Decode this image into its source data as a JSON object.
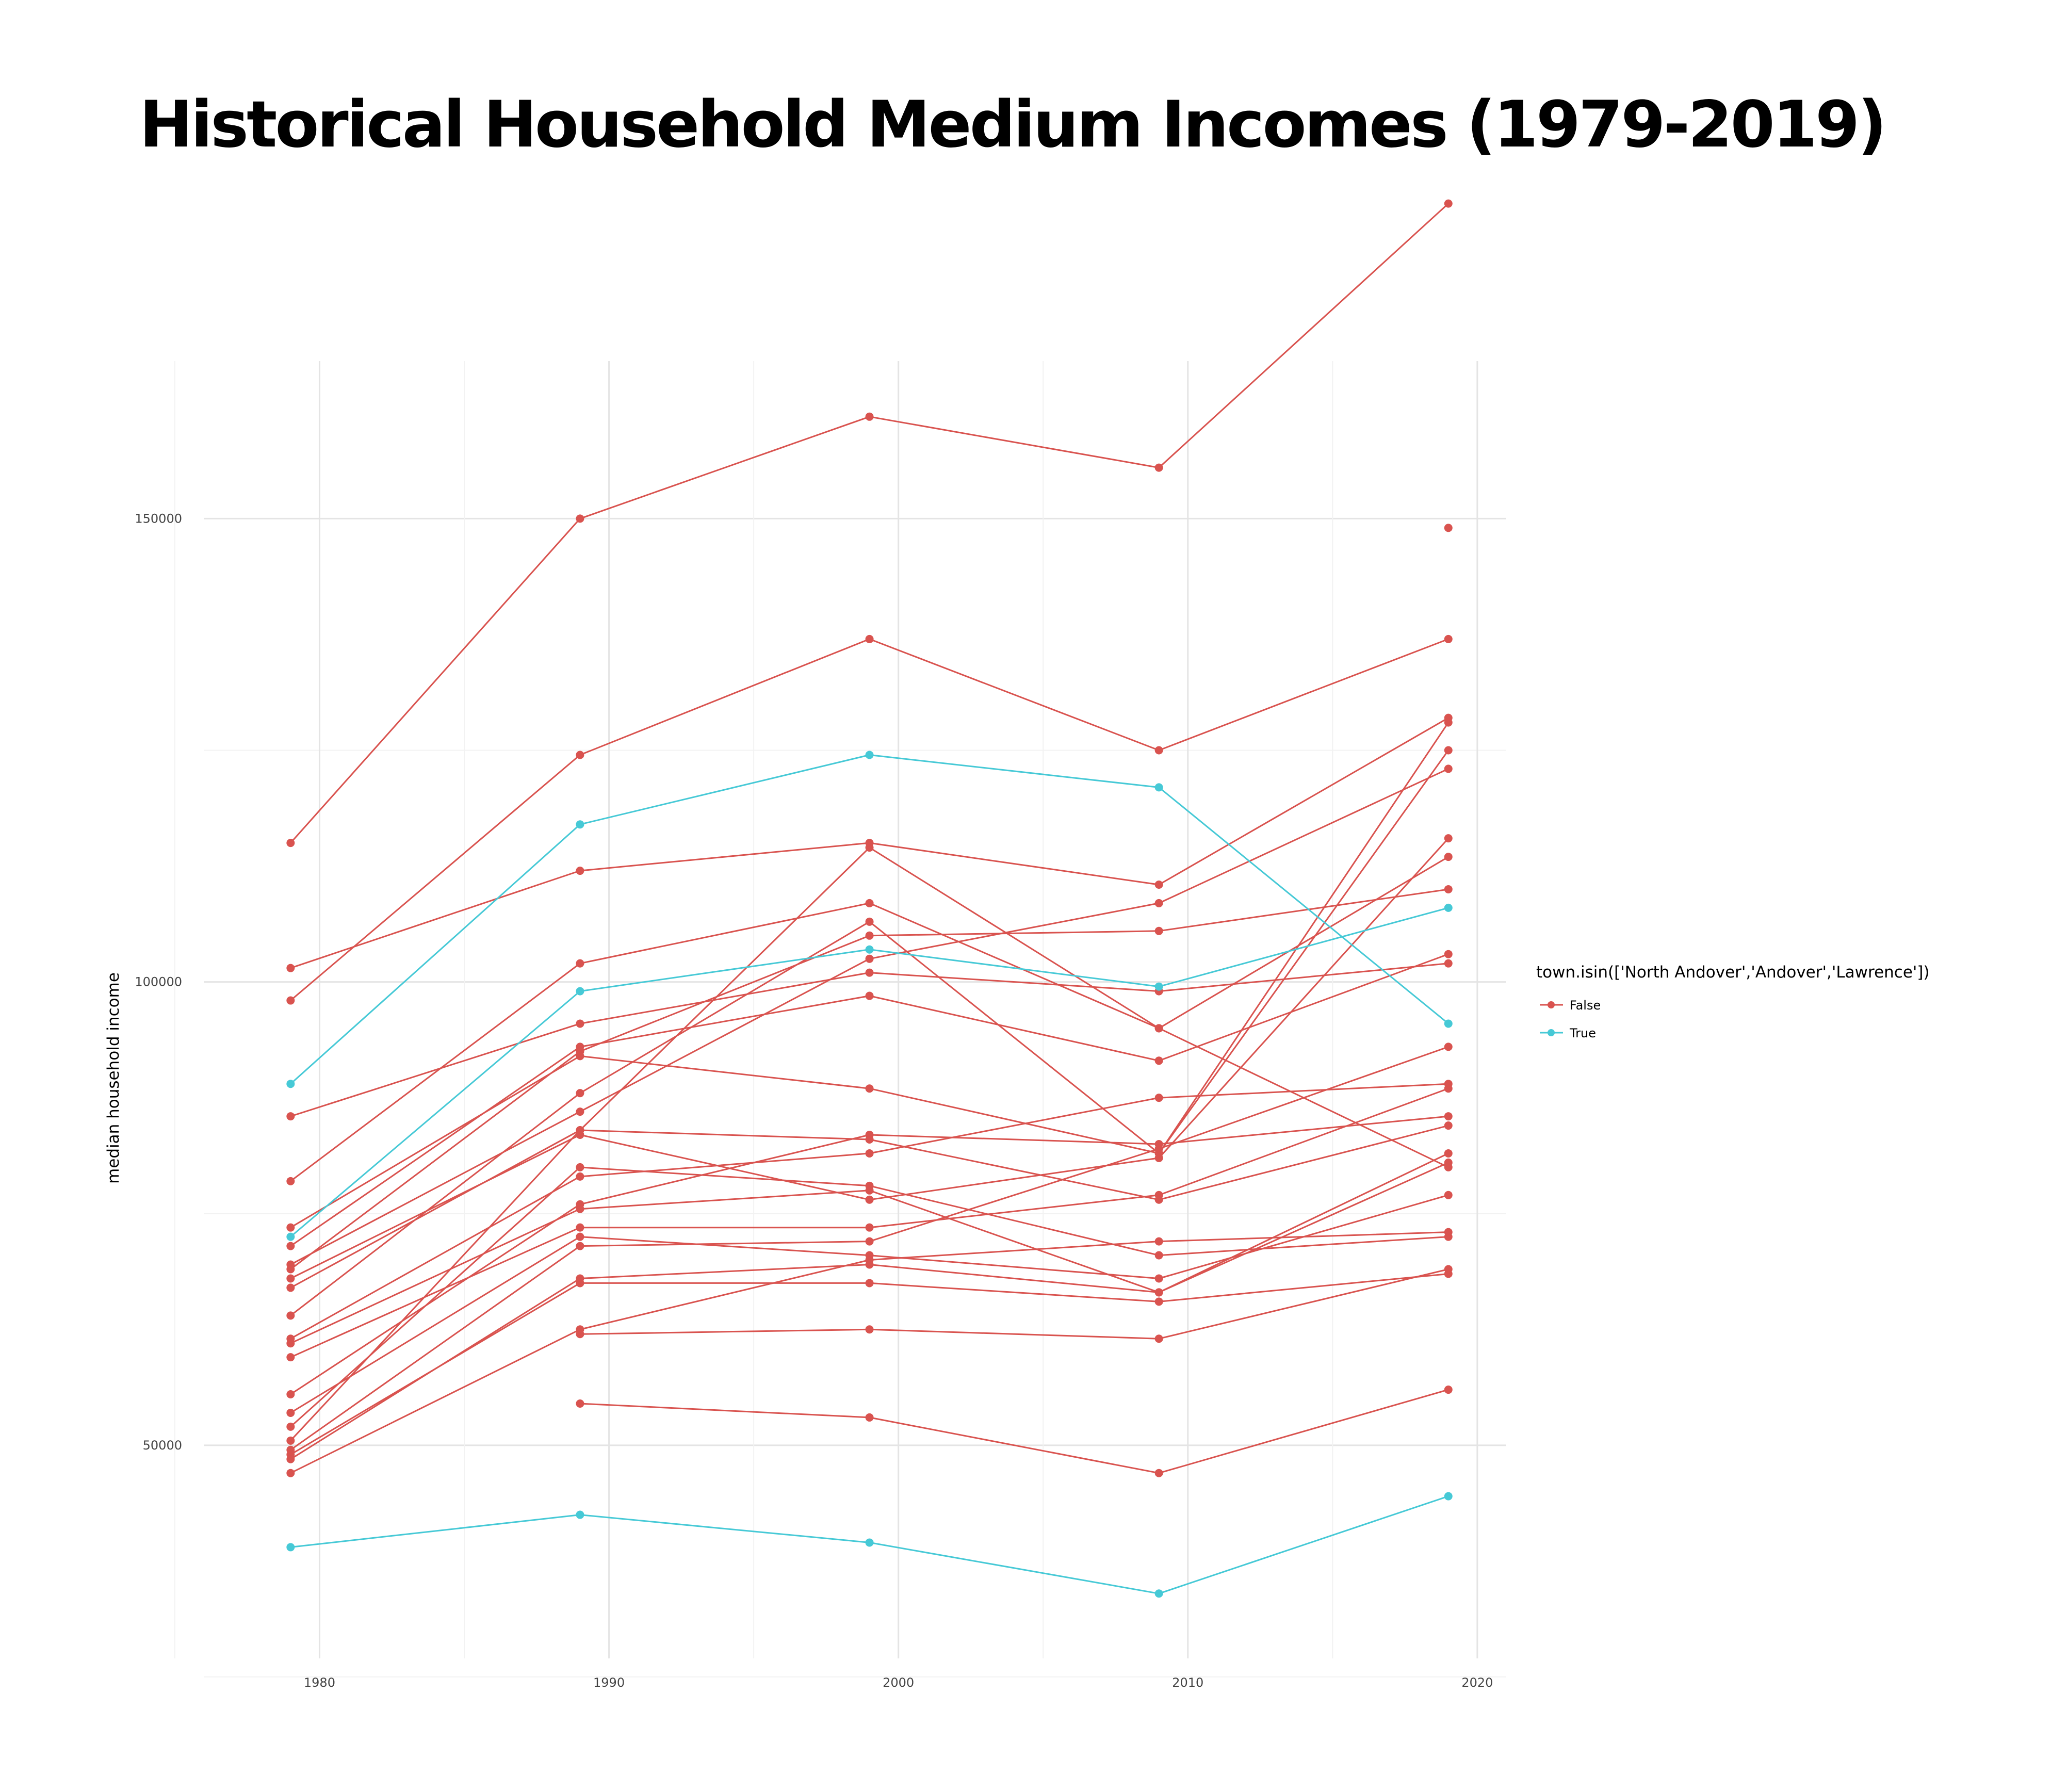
{
  "chart_data": {
    "type": "line",
    "title": "Historical Household Medium Incomes (1979-2019)",
    "xlabel": "",
    "ylabel": "median household income",
    "x": [
      1979,
      1989,
      1999,
      2009,
      2019
    ],
    "xticks": [
      1980,
      1990,
      2000,
      2010,
      2020
    ],
    "yticks": [
      50000,
      100000,
      150000
    ],
    "xlim": [
      1976,
      2021
    ],
    "ylim": [
      27000,
      167000
    ],
    "grid": true,
    "legend": {
      "title": "town.isin(['North Andover','Andover','Lawrence'])",
      "placement": "right",
      "entries": [
        {
          "label": "False",
          "color": "#d9534f"
        },
        {
          "label": "True",
          "color": "#46c9d6"
        }
      ]
    },
    "series": [
      {
        "group": "False",
        "values": [
          115000,
          150000,
          161000,
          155500,
          184000
        ]
      },
      {
        "group": "False",
        "values": [
          101500,
          112000,
          115000,
          110500,
          128500
        ]
      },
      {
        "group": "False",
        "values": [
          98000,
          124500,
          137000,
          125000,
          137000
        ]
      },
      {
        "group": "False",
        "values": [
          85500,
          95500,
          101000,
          99000,
          102000
        ]
      },
      {
        "group": "False",
        "values": [
          78500,
          102000,
          108500,
          95000,
          113500
        ]
      },
      {
        "group": "False",
        "values": [
          73500,
          92000,
          88500,
          81500,
          125000
        ]
      },
      {
        "group": "False",
        "values": [
          71500,
          93000,
          98500,
          91500,
          103000
        ]
      },
      {
        "group": "False",
        "values": [
          69500,
          86000,
          102500,
          108500,
          123000
        ]
      },
      {
        "group": "False",
        "values": [
          69000,
          92500,
          105000,
          105500,
          110000
        ]
      },
      {
        "group": "False",
        "values": [
          68000,
          83500,
          76500,
          81000,
          115500
        ]
      },
      {
        "group": "False",
        "values": [
          67000,
          84000,
          114500,
          95000,
          80000
        ]
      },
      {
        "group": "False",
        "values": [
          64000,
          88000,
          106500,
          81500,
          128000
        ]
      },
      {
        "group": "False",
        "values": [
          61500,
          79000,
          81500,
          87500,
          89000
        ]
      },
      {
        "group": "False",
        "values": [
          61000,
          75500,
          77500,
          66500,
          80500
        ]
      },
      {
        "group": "False",
        "values": [
          59500,
          73500,
          73500,
          77000,
          88500
        ]
      },
      {
        "group": "False",
        "values": [
          55500,
          76000,
          83500,
          82500,
          85500
        ]
      },
      {
        "group": "False",
        "values": [
          53500,
          72500,
          70500,
          68000,
          77000
        ]
      },
      {
        "group": "False",
        "values": [
          52000,
          80000,
          78000,
          70500,
          72500
        ]
      },
      {
        "group": "False",
        "values": [
          50500,
          84000,
          83000,
          76500,
          84500
        ]
      },
      {
        "group": "False",
        "values": [
          49500,
          71500,
          72000,
          82000,
          93000
        ]
      },
      {
        "group": "False",
        "values": [
          49000,
          67500,
          67500,
          65500,
          68500
        ]
      },
      {
        "group": "False",
        "values": [
          48500,
          68000,
          69500,
          66500,
          81500
        ]
      },
      {
        "group": "False",
        "values": [
          47000,
          62500,
          70000,
          72000,
          73000
        ]
      },
      {
        "group": "False",
        "values": [
          null,
          62000,
          62500,
          61500,
          69000
        ]
      },
      {
        "group": "False",
        "values": [
          null,
          54500,
          53000,
          47000,
          56000
        ]
      },
      {
        "group": "False",
        "values": [
          null,
          null,
          null,
          null,
          149000
        ]
      },
      {
        "group": "True",
        "values": [
          89000,
          117000,
          124500,
          121000,
          95500
        ]
      },
      {
        "group": "True",
        "values": [
          72500,
          99000,
          103500,
          99500,
          108000
        ]
      },
      {
        "group": "True",
        "values": [
          39000,
          42500,
          39500,
          34000,
          44500
        ]
      }
    ]
  }
}
